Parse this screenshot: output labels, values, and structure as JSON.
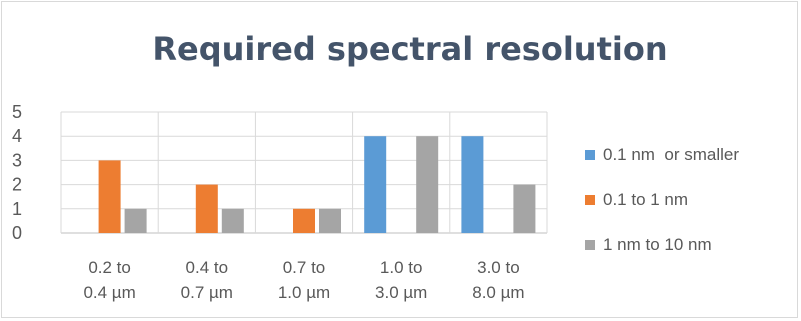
{
  "chart_data": {
    "type": "bar",
    "title": "Required spectral resolution",
    "xlabel": "",
    "ylabel": "",
    "ylim": [
      0,
      5
    ],
    "yticks": [
      "0",
      "1",
      "2",
      "3",
      "4",
      "5"
    ],
    "grid": true,
    "legend_position": "right",
    "categories": [
      [
        "0.2 to",
        "0.4 µm"
      ],
      [
        "0.4 to",
        "0.7 µm"
      ],
      [
        "0.7 to",
        "1.0 µm"
      ],
      [
        "1.0 to",
        "3.0 µm"
      ],
      [
        "3.0 to",
        "8.0 µm"
      ]
    ],
    "series": [
      {
        "name": "0.1 nm  or smaller",
        "color": "#5b9bd5",
        "values": [
          0,
          0,
          0,
          4,
          4
        ]
      },
      {
        "name": "0.1 to 1 nm",
        "color": "#ed7d31",
        "values": [
          3,
          2,
          1,
          0,
          0
        ]
      },
      {
        "name": "1 nm to 10 nm",
        "color": "#a5a5a5",
        "values": [
          1,
          1,
          1,
          4,
          2
        ]
      }
    ]
  }
}
